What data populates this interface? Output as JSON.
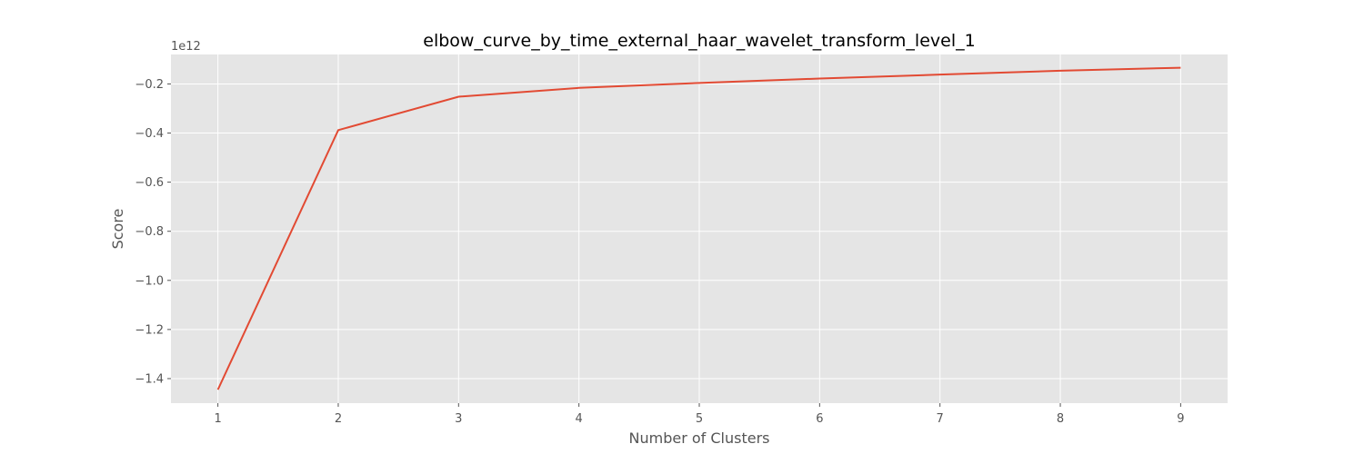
{
  "chart_data": {
    "type": "line",
    "title": "elbow_curve_by_time_external_haar_wavelet_transform_level_1",
    "xlabel": "Number of Clusters",
    "ylabel": "Score",
    "y_offset_label": "1e12",
    "x": [
      1,
      2,
      3,
      4,
      5,
      6,
      7,
      8,
      9
    ],
    "y": [
      -1.445,
      -0.388,
      -0.252,
      -0.216,
      -0.196,
      -0.178,
      -0.162,
      -0.146,
      -0.134
    ],
    "xlim": [
      0.61,
      9.39
    ],
    "ylim": [
      -1.5,
      -0.08
    ],
    "xticks": [
      1,
      2,
      3,
      4,
      5,
      6,
      7,
      8,
      9
    ],
    "xtick_labels": [
      "1",
      "2",
      "3",
      "4",
      "5",
      "6",
      "7",
      "8",
      "9"
    ],
    "yticks": [
      -1.4,
      -1.2,
      -1.0,
      -0.8,
      -0.6,
      -0.4,
      -0.2
    ],
    "ytick_labels": [
      "−1.4",
      "−1.2",
      "−1.0",
      "−0.8",
      "−0.6",
      "−0.4",
      "−0.2"
    ],
    "grid": true,
    "colors": {
      "line": "#E24A33",
      "plot_bg": "#E5E5E5",
      "grid": "#FFFFFF"
    }
  }
}
